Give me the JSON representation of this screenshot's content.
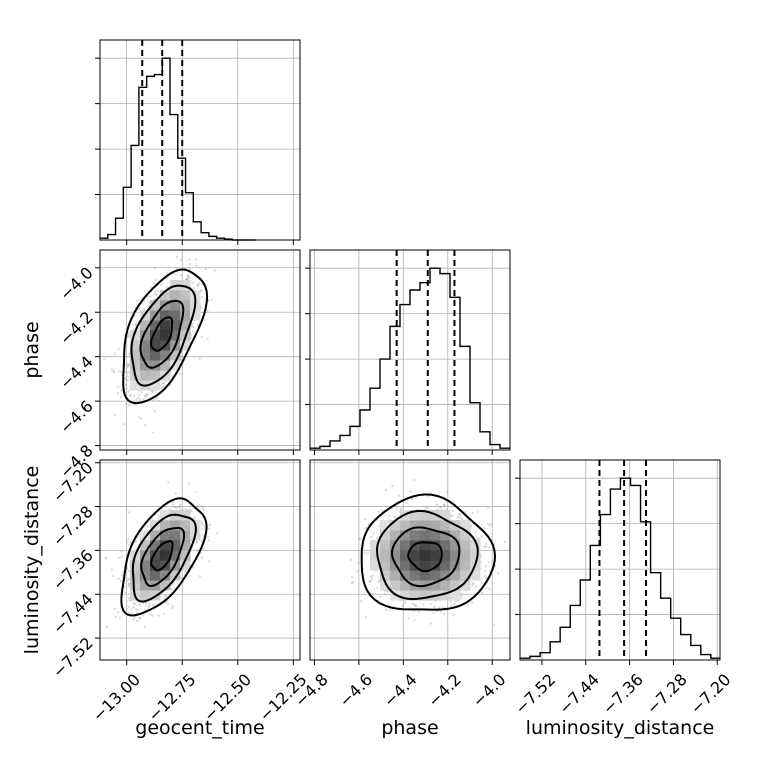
{
  "chart_data": {
    "type": "corner",
    "parameters": [
      {
        "name": "geocent_time",
        "label": "geocent_time",
        "range": [
          -13.12,
          -12.22
        ],
        "ticks": [
          -13.0,
          -12.75,
          -12.5,
          -12.25
        ],
        "tick_labels": [
          "−13.00",
          "−12.75",
          "−12.50",
          "−12.25"
        ],
        "mean": -12.84,
        "sd": 0.075,
        "quantiles": [
          -12.93,
          -12.84,
          -12.75
        ],
        "hist_bins": [
          -13.12,
          -13.085,
          -13.05,
          -13.015,
          -12.98,
          -12.945,
          -12.91,
          -12.875,
          -12.84,
          -12.805,
          -12.77,
          -12.735,
          -12.7,
          -12.665,
          -12.63,
          -12.595,
          -12.56,
          -12.525,
          -12.49,
          -12.455,
          -12.42
        ],
        "hist_counts": [
          0.01,
          0.03,
          0.12,
          0.29,
          0.52,
          0.84,
          0.9,
          0.91,
          1.0,
          0.69,
          0.45,
          0.26,
          0.1,
          0.04,
          0.02,
          0.01,
          0.005,
          0,
          0,
          0
        ]
      },
      {
        "name": "phase",
        "label": "phase",
        "range": [
          -4.82,
          -3.92
        ],
        "ticks": [
          -4.8,
          -4.6,
          -4.4,
          -4.2,
          -4.0
        ],
        "tick_labels": [
          "−4.8",
          "−4.6",
          "−4.4",
          "−4.2",
          "−4.0"
        ],
        "mean": -4.3,
        "sd": 0.12,
        "quantiles": [
          -4.43,
          -4.29,
          -4.17
        ],
        "hist_bins": [
          -4.82,
          -4.775,
          -4.73,
          -4.685,
          -4.64,
          -4.595,
          -4.55,
          -4.505,
          -4.46,
          -4.415,
          -4.37,
          -4.325,
          -4.28,
          -4.235,
          -4.19,
          -4.145,
          -4.1,
          -4.055,
          -4.01,
          -3.965,
          -3.92
        ],
        "hist_counts": [
          0.01,
          0.02,
          0.05,
          0.08,
          0.13,
          0.22,
          0.34,
          0.5,
          0.68,
          0.8,
          0.88,
          0.92,
          1.0,
          0.97,
          0.84,
          0.57,
          0.26,
          0.1,
          0.03,
          0.01
        ]
      },
      {
        "name": "luminosity_distance",
        "label": "luminosity_distance",
        "range": [
          -7.56,
          -7.195
        ],
        "ticks": [
          -7.52,
          -7.44,
          -7.36,
          -7.28,
          -7.2
        ],
        "tick_labels": [
          "−7.52",
          "−7.44",
          "−7.36",
          "−7.28",
          "−7.20"
        ],
        "mean": -7.37,
        "sd": 0.042,
        "quantiles": [
          -7.415,
          -7.37,
          -7.33
        ],
        "hist_bins": [
          -7.56,
          -7.5417,
          -7.5233,
          -7.505,
          -7.4867,
          -7.4683,
          -7.45,
          -7.4317,
          -7.4133,
          -7.395,
          -7.3767,
          -7.3583,
          -7.34,
          -7.3217,
          -7.3033,
          -7.285,
          -7.2667,
          -7.2483,
          -7.23,
          -7.2117,
          -7.195
        ],
        "hist_counts": [
          0.01,
          0.02,
          0.04,
          0.1,
          0.18,
          0.3,
          0.44,
          0.63,
          0.8,
          0.94,
          1.0,
          0.96,
          0.76,
          0.48,
          0.34,
          0.23,
          0.14,
          0.08,
          0.03,
          0.01
        ]
      }
    ],
    "pairs": [
      {
        "x": "geocent_time",
        "y": "phase",
        "correlation": 0.55
      },
      {
        "x": "geocent_time",
        "y": "luminosity_distance",
        "correlation": 0.55
      },
      {
        "x": "phase",
        "y": "luminosity_distance",
        "correlation": 0.0
      }
    ],
    "contour_levels_sigma": [
      0.5,
      1.0,
      1.5,
      2.0
    ],
    "grid": true
  }
}
